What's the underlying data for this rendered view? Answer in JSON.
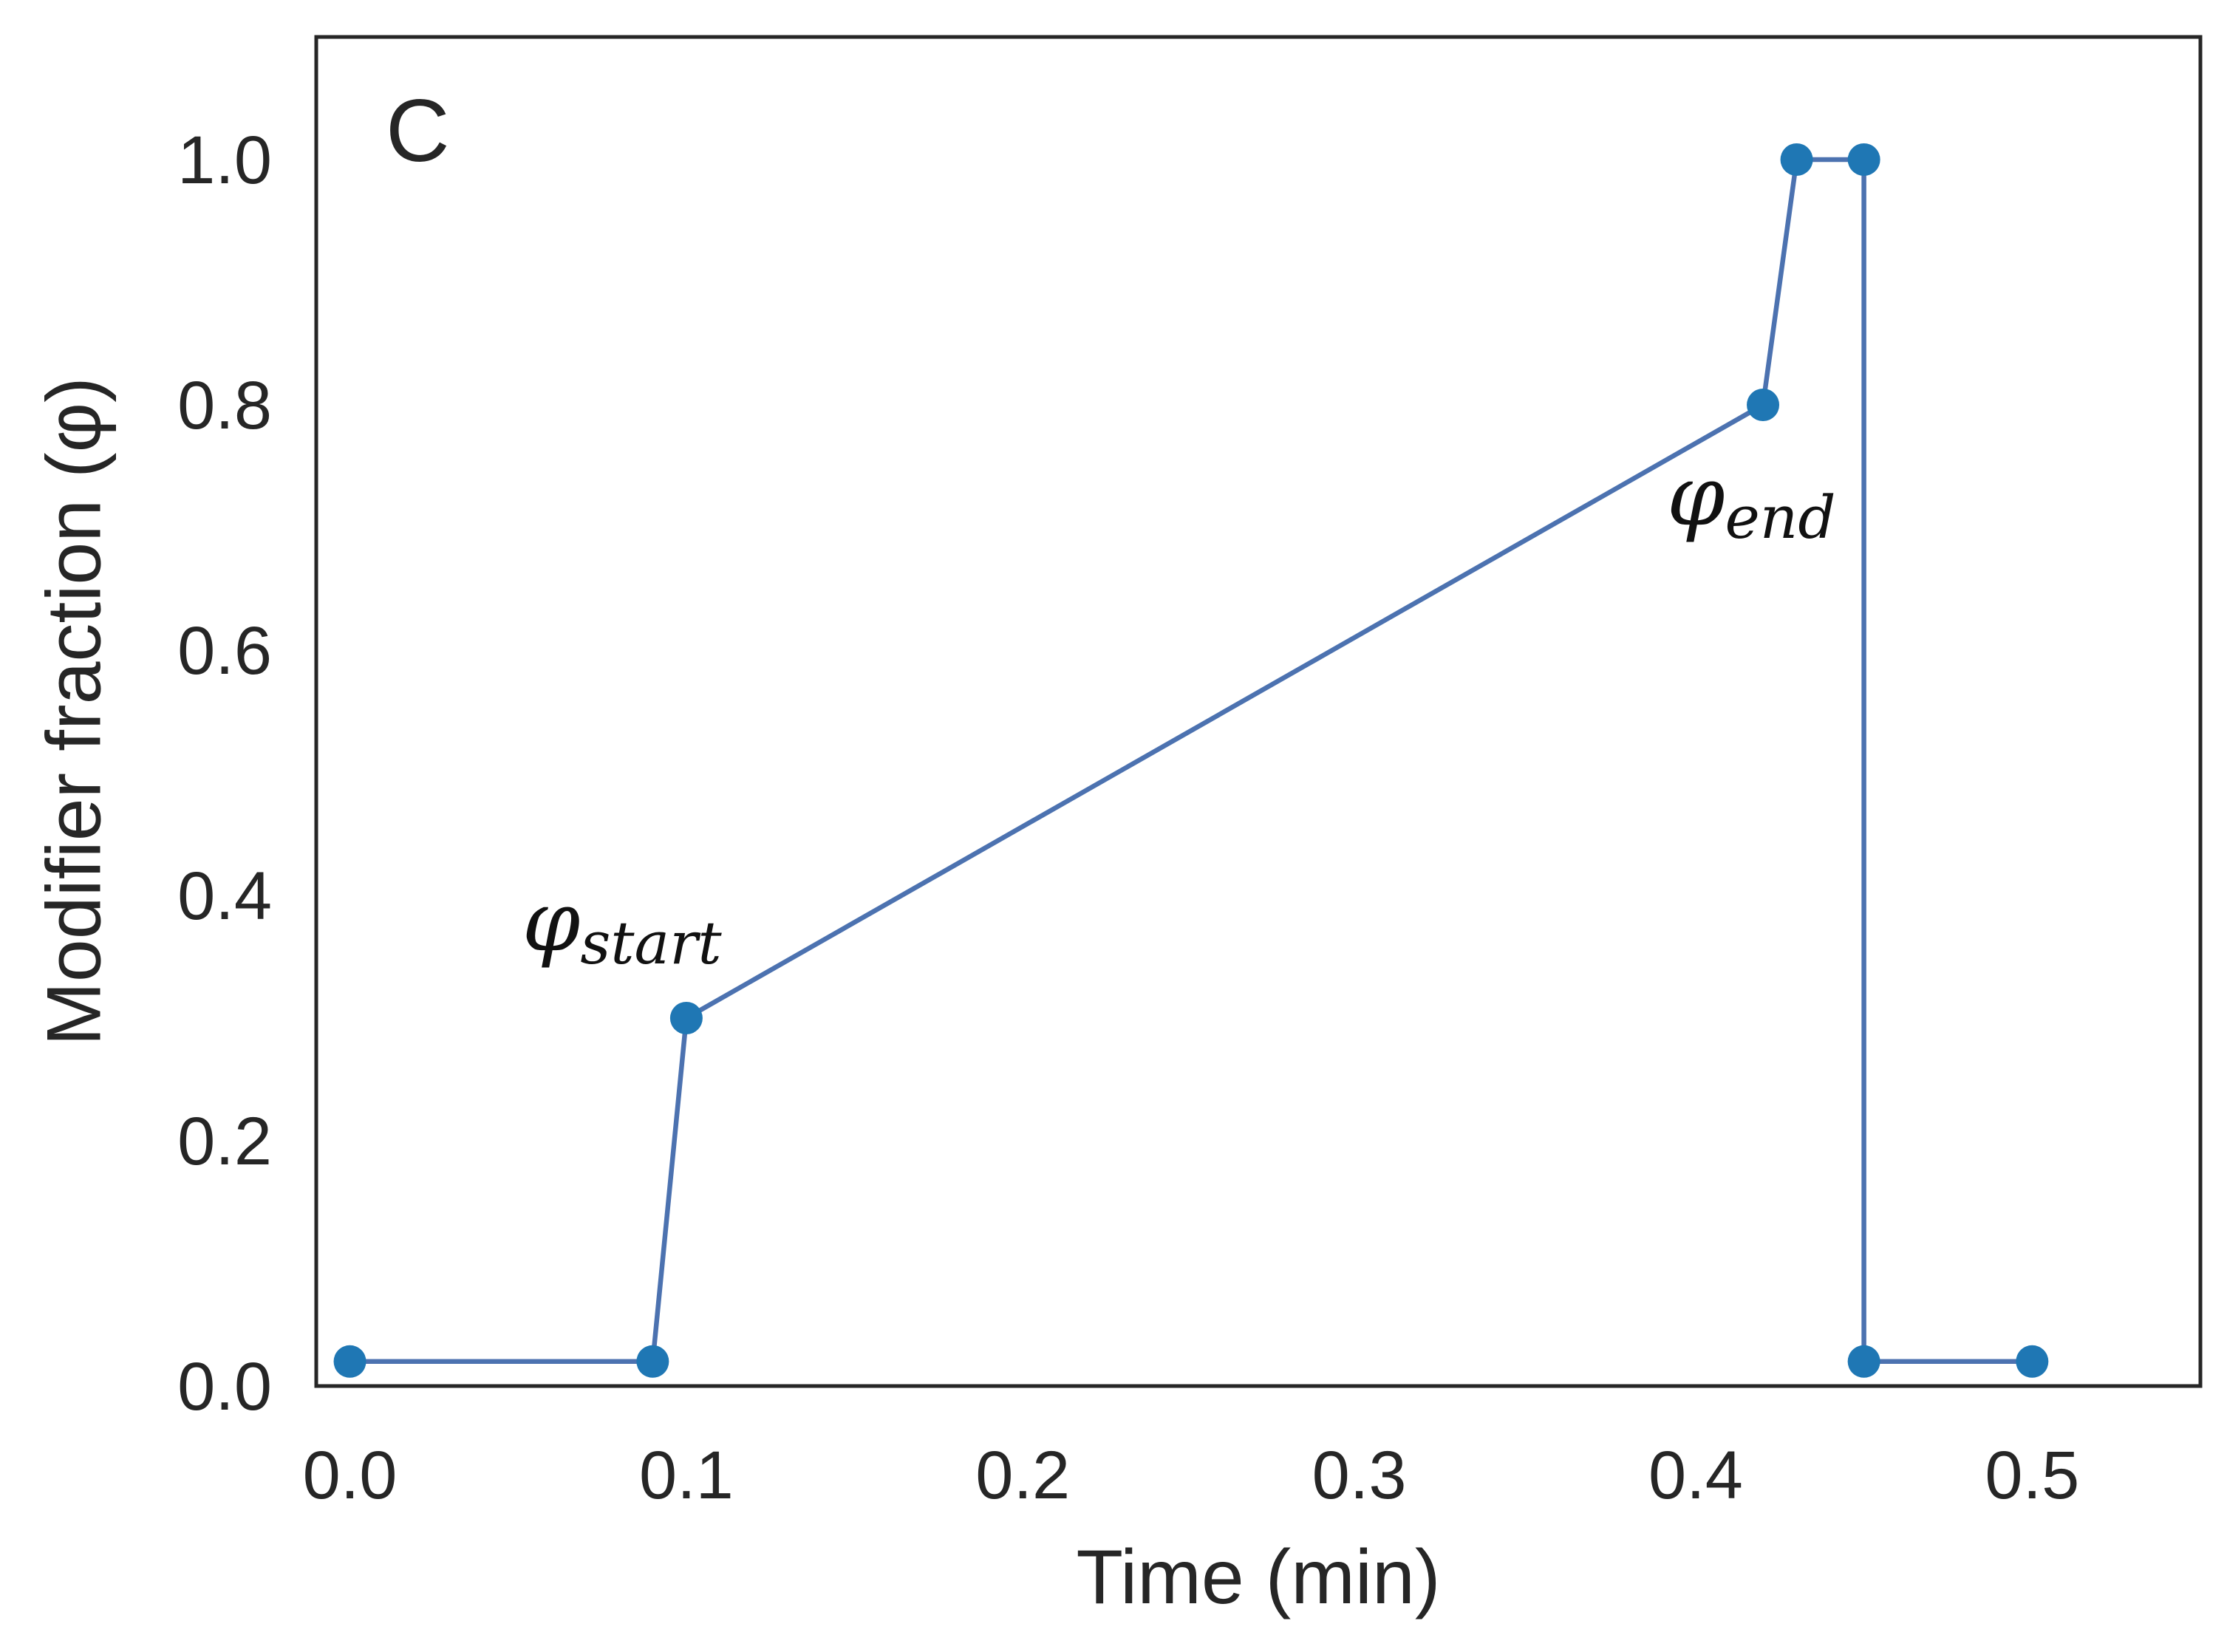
{
  "chart_data": {
    "type": "line",
    "panel_label": "C",
    "xlabel": "Time (min)",
    "ylabel": "Modifier fraction (φ)",
    "xlim": [
      -0.01,
      0.55
    ],
    "ylim": [
      0.0,
      1.1
    ],
    "xticks": [
      "0.0",
      "0.1",
      "0.2",
      "0.3",
      "0.4",
      "0.5"
    ],
    "yticks": [
      "0.0",
      "0.2",
      "0.4",
      "0.6",
      "0.8",
      "1.0"
    ],
    "grid": false,
    "line_color": "#4c72b0",
    "marker_color": "#1f77b4",
    "series": [
      {
        "x": [
          0.0,
          0.09,
          0.1,
          0.42,
          0.43,
          0.45,
          0.45,
          0.5
        ],
        "y": [
          0.02,
          0.02,
          0.3,
          0.8,
          1.0,
          1.0,
          0.02,
          0.02
        ]
      }
    ],
    "annotations": [
      {
        "symbol": "φ",
        "subscript": "start",
        "x": 0.1,
        "y": 0.3
      },
      {
        "symbol": "φ",
        "subscript": "end",
        "x": 0.42,
        "y": 0.8
      }
    ]
  }
}
